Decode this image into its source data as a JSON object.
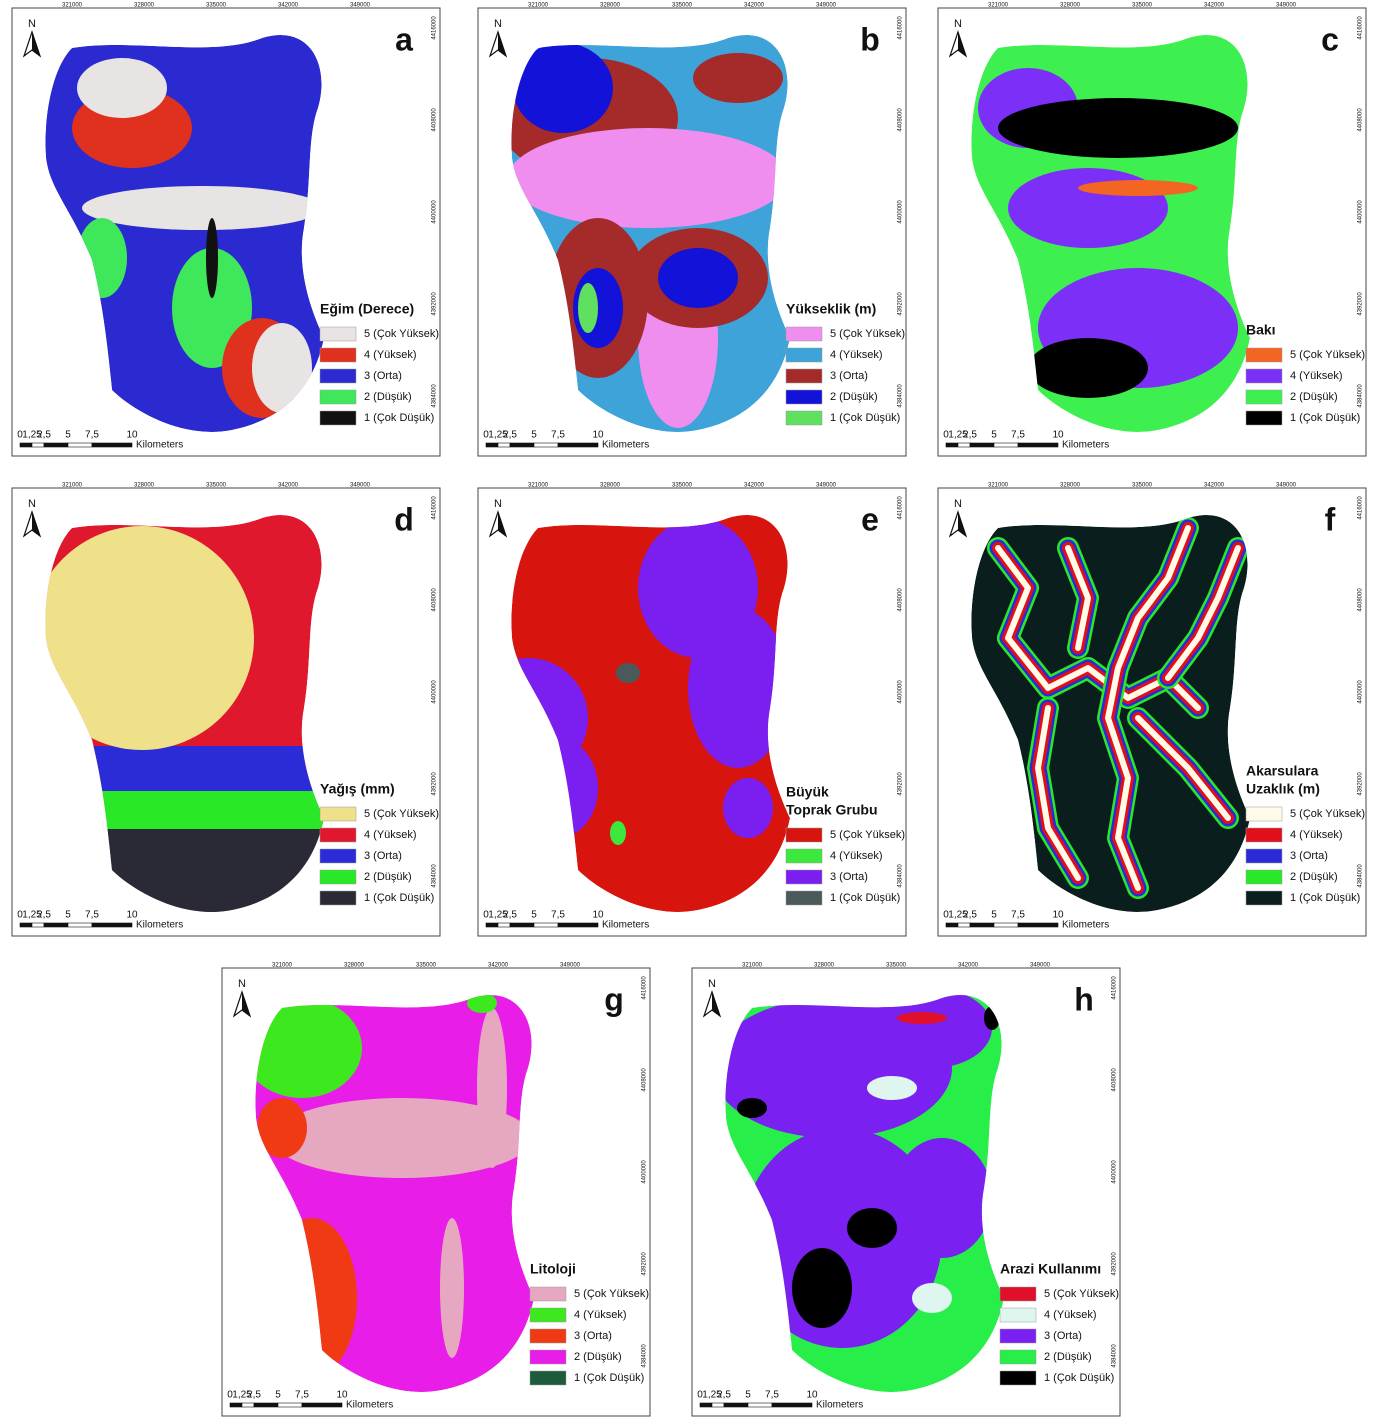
{
  "north": "N",
  "coordinates": {
    "eastings": [
      "321000",
      "328000",
      "335000",
      "342000",
      "349000"
    ],
    "northings": [
      "4416000",
      "4408000",
      "4400000",
      "4392000",
      "4384000"
    ]
  },
  "scale_bar": {
    "labels": [
      "0",
      "1,25",
      "2,5",
      "5",
      "7,5",
      "10"
    ],
    "unit": "Kilometers"
  },
  "panels": [
    {
      "letter": "a",
      "legend_title": [
        "Eğim (Derece)"
      ],
      "entries": [
        {
          "label": "5 (Çok Yüksek)",
          "color": "#e8e4e4"
        },
        {
          "label": "4 (Yüksek)",
          "color": "#e0301e"
        },
        {
          "label": "3 (Orta)",
          "color": "#2a2ad0"
        },
        {
          "label": "2 (Düşük)",
          "color": "#3fe85a"
        },
        {
          "label": "1 (Çok Düşük)",
          "color": "#111111"
        }
      ]
    },
    {
      "letter": "b",
      "legend_title": [
        "Yükseklik (m)"
      ],
      "entries": [
        {
          "label": "5 (Çok Yüksek)",
          "color": "#f08ef0"
        },
        {
          "label": "4 (Yüksek)",
          "color": "#3ea3d8"
        },
        {
          "label": "3 (Orta)",
          "color": "#a52a2a"
        },
        {
          "label": "2 (Düşük)",
          "color": "#1212d8"
        },
        {
          "label": "1 (Çok Düşük)",
          "color": "#5fe05f"
        }
      ]
    },
    {
      "letter": "c",
      "legend_title": [
        "Bakı"
      ],
      "entries": [
        {
          "label": "5 (Çok Yüksek)",
          "color": "#f26522"
        },
        {
          "label": "4 (Yüksek)",
          "color": "#7b2ff7"
        },
        {
          "label": "2 (Düşük)",
          "color": "#3ef04f"
        },
        {
          "label": "1 (Çok Düşük)",
          "color": "#000000"
        }
      ]
    },
    {
      "letter": "d",
      "legend_title": [
        "Yağış (mm)"
      ],
      "entries": [
        {
          "label": "5 (Çok Yüksek)",
          "color": "#efe08a"
        },
        {
          "label": "4 (Yüksek)",
          "color": "#e0182e"
        },
        {
          "label": "3 (Orta)",
          "color": "#2b2bd8"
        },
        {
          "label": "2 (Düşük)",
          "color": "#28e828"
        },
        {
          "label": "1 (Çok Düşük)",
          "color": "#2a2a36"
        }
      ]
    },
    {
      "letter": "e",
      "legend_title": [
        "Büyük",
        "Toprak Grubu"
      ],
      "entries": [
        {
          "label": "5 (Çok Yüksek)",
          "color": "#d8140e"
        },
        {
          "label": "4 (Yüksek)",
          "color": "#3ce83c"
        },
        {
          "label": "3 (Orta)",
          "color": "#7a1ff0"
        },
        {
          "label": "1 (Çok Düşük)",
          "color": "#4a5a5a"
        }
      ]
    },
    {
      "letter": "f",
      "legend_title": [
        "Akarsulara",
        "Uzaklık (m)"
      ],
      "entries": [
        {
          "label": "5 (Çok Yüksek)",
          "color": "#fffbe8"
        },
        {
          "label": "4 (Yüksek)",
          "color": "#e0101a"
        },
        {
          "label": "3 (Orta)",
          "color": "#2a2ad8"
        },
        {
          "label": "2 (Düşük)",
          "color": "#28e828"
        },
        {
          "label": "1 (Çok Düşük)",
          "color": "#0b1e1e"
        }
      ]
    },
    {
      "letter": "g",
      "legend_title": [
        "Litoloji"
      ],
      "entries": [
        {
          "label": "5 (Çok Yüksek)",
          "color": "#e6a8c0"
        },
        {
          "label": "4 (Yüksek)",
          "color": "#3ee81e"
        },
        {
          "label": "3 (Orta)",
          "color": "#f03a14"
        },
        {
          "label": "2 (Düşük)",
          "color": "#e81ee8"
        },
        {
          "label": "1 (Çok Düşük)",
          "color": "#1e5a3c"
        }
      ]
    },
    {
      "letter": "h",
      "legend_title": [
        "Arazi Kullanımı"
      ],
      "entries": [
        {
          "label": "5 (Çok Yüksek)",
          "color": "#e0102a"
        },
        {
          "label": "4 (Yüksek)",
          "color": "#dff5f0"
        },
        {
          "label": "3 (Orta)",
          "color": "#7a20f0"
        },
        {
          "label": "2 (Düşük)",
          "color": "#28ee4a"
        },
        {
          "label": "1 (Çok Düşük)",
          "color": "#000000"
        }
      ]
    }
  ]
}
